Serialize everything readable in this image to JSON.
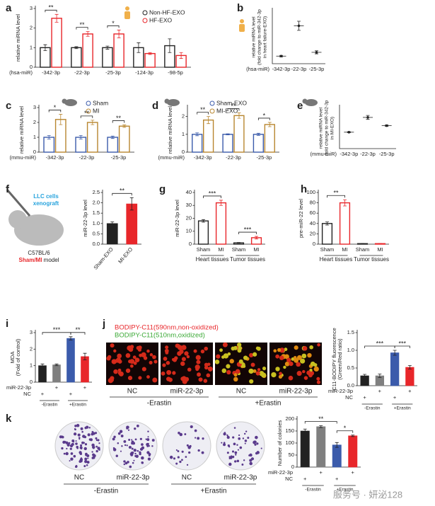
{
  "watermark": "服务号 · 妍泌128",
  "chart_data": [
    {
      "panel": "a",
      "type": "bar",
      "style": "open",
      "ylabel": "relative miRNA level",
      "prefix": "(hsa-miR)",
      "categories": [
        "-342-3p",
        "-22-3p",
        "-25-3p",
        "-124-3p",
        "-98-5p"
      ],
      "series": [
        {
          "name": "Non-HF-EXO",
          "color": "#222222",
          "values": [
            1,
            1,
            1,
            1,
            1.1
          ],
          "errors": [
            0.15,
            0.05,
            0.08,
            0.25,
            0.35
          ]
        },
        {
          "name": "HF-EXO",
          "color": "#e8262a",
          "values": [
            2.5,
            1.7,
            1.7,
            0.7,
            0.6
          ],
          "errors": [
            0.2,
            0.12,
            0.2,
            0.05,
            0.15
          ]
        }
      ],
      "significance": [
        "**",
        "**",
        "*"
      ],
      "ylim": [
        0,
        3
      ],
      "yticks": [
        0,
        1,
        2,
        3
      ]
    },
    {
      "panel": "b",
      "type": "dot",
      "ylabel": [
        "relative miRNA level",
        "(fold change to miR-342-3p",
        "in heart failure-EXO)"
      ],
      "prefix": "(hsa-miR)",
      "categories": [
        "-342-3p",
        "-22-3p",
        "-25-3p"
      ],
      "values": [
        1,
        5,
        1.5
      ],
      "errors": [
        0.1,
        0.6,
        0.2
      ],
      "color": "#222222",
      "ylim": [
        0,
        7
      ],
      "yticks": []
    },
    {
      "panel": "c",
      "type": "bar",
      "style": "open",
      "ylabel": "relative miRNA level",
      "prefix": "(mmu-miR)",
      "categories": [
        "-342-3p",
        "-22-3p",
        "-25-3p"
      ],
      "series": [
        {
          "name": "Sham",
          "color": "#3b5bab",
          "values": [
            1,
            1,
            1
          ],
          "errors": [
            0.12,
            0.12,
            0.08
          ]
        },
        {
          "name": "MI",
          "color": "#b8862f",
          "values": [
            2.2,
            2.0,
            1.75
          ],
          "errors": [
            0.35,
            0.15,
            0.08
          ]
        }
      ],
      "significance": [
        "*",
        "**",
        "**"
      ],
      "ylim": [
        0,
        3
      ],
      "yticks": [
        0,
        1,
        2,
        3
      ]
    },
    {
      "panel": "d",
      "type": "bar",
      "style": "open",
      "ylabel": "relative miRNA level",
      "prefix": "(mmu-miR)",
      "categories": [
        "-342-3p",
        "-22-3p",
        "-25-3p"
      ],
      "series": [
        {
          "name": "Sham-EXO",
          "color": "#3b5bab",
          "values": [
            1,
            1,
            1
          ],
          "errors": [
            0.08,
            0.03,
            0.06
          ]
        },
        {
          "name": "MI-EXO",
          "color": "#b8862f",
          "values": [
            1.8,
            2.05,
            1.55
          ],
          "errors": [
            0.2,
            0.15,
            0.12
          ]
        }
      ],
      "significance": [
        "**",
        "**",
        "*"
      ],
      "ylim": [
        0,
        2.5
      ],
      "yticks": [
        0,
        1,
        2
      ]
    },
    {
      "panel": "e",
      "type": "dot",
      "ylabel": [
        "relative miRNA level",
        "(fold change to miR-342-3p",
        "in MI-EXO)"
      ],
      "prefix": "(mmu-miR)",
      "categories": [
        "-342-3p",
        "-22-3p",
        "-25-3p"
      ],
      "values": [
        1,
        1.9,
        1.4
      ],
      "errors": [
        0.03,
        0.12,
        0.05
      ],
      "color": "#222222",
      "ylim": [
        0,
        2.5
      ],
      "yticks": []
    },
    {
      "panel": "f",
      "type": "bar",
      "style": "filled",
      "ylabel": "miR-22-3p level",
      "categories": [
        "Sham-EXO",
        "MI-EXO"
      ],
      "values": [
        1,
        1.95
      ],
      "errors": [
        0.08,
        0.3
      ],
      "colors": [
        "#222222",
        "#e8262a"
      ],
      "significance": [
        "**"
      ],
      "ylim": [
        0,
        2.5
      ],
      "yticks": [
        {
          "value": 0,
          "label": "0.0"
        },
        0.5,
        {
          "value": 1,
          "label": "1.0"
        },
        1.5,
        {
          "value": 2,
          "label": "2.0"
        },
        2.5
      ],
      "illustration": [
        "LLC cells",
        "xenograft",
        "C57BL/6"
      ],
      "model": [
        "Sham/MI",
        " model"
      ]
    },
    {
      "panel": "g",
      "type": "bar",
      "style": "open",
      "ylabel": "miR-22-3p level",
      "categories": [
        "Sham",
        "MI",
        "Sham",
        "MI"
      ],
      "groups": [
        "Heart tissues",
        "Tumor tissues"
      ],
      "values": [
        18,
        32,
        1,
        5
      ],
      "errors": [
        1,
        2,
        0.3,
        1
      ],
      "colors": [
        "#222222",
        "#e8262a",
        "#222222",
        "#e8262a"
      ],
      "significance": [
        "***",
        "***"
      ],
      "ylim": [
        0,
        40
      ],
      "yticks": [
        0,
        10,
        20,
        30,
        40
      ]
    },
    {
      "panel": "h",
      "type": "bar",
      "style": "open",
      "ylabel": "pre-miR-22 level",
      "categories": [
        "Sham",
        "MI",
        "Sham",
        "MI"
      ],
      "groups": [
        "Heart tissues",
        "Tumor tissues"
      ],
      "values": [
        40,
        80,
        1,
        1
      ],
      "errors": [
        3,
        6,
        0.3,
        0.3
      ],
      "colors": [
        "#222222",
        "#e8262a",
        "#222222",
        "#e8262a"
      ],
      "significance": [
        "**"
      ],
      "ylim": [
        0,
        100
      ],
      "yticks": [
        0,
        20,
        40,
        60,
        80,
        100
      ]
    },
    {
      "panel": "i",
      "type": "bar",
      "style": "filled",
      "ylabel": [
        "MDA",
        "(Fold of control)"
      ],
      "values": [
        1,
        1.05,
        2.65,
        1.55
      ],
      "errors": [
        0.1,
        0.05,
        0.1,
        0.2
      ],
      "colors": [
        "#222222",
        "#7f7f7f",
        "#3b5bab",
        "#e8262a"
      ],
      "rows": [
        {
          "label": "miR-22-3p",
          "marks": [
            null,
            "+",
            null,
            "+"
          ]
        },
        {
          "label": "NC",
          "marks": [
            "+",
            null,
            "+",
            null
          ]
        }
      ],
      "groups": [
        "-Erastin",
        "+Erastin"
      ],
      "significance": [
        "***",
        "**"
      ],
      "ylim": [
        0,
        3
      ],
      "yticks": [
        0,
        1,
        2,
        3
      ]
    },
    {
      "panel": "j",
      "type": "bar",
      "style": "filled",
      "ylabel": [
        "C11-BODIPY fluorescence",
        "(Green/Red ratio)"
      ],
      "values": [
        0.28,
        0.28,
        0.93,
        0.52
      ],
      "errors": [
        0.04,
        0.05,
        0.07,
        0.05
      ],
      "colors": [
        "#222222",
        "#7f7f7f",
        "#3b5bab",
        "#e8262a"
      ],
      "rows": [
        {
          "label": "miR-22-3p",
          "marks": [
            null,
            "+",
            null,
            "+"
          ]
        },
        {
          "label": "NC",
          "marks": [
            "+",
            null,
            "+",
            null
          ]
        }
      ],
      "groups": [
        "-Erastin",
        "+Erastin"
      ],
      "significance": [
        "***",
        "***"
      ],
      "ylim": [
        0,
        1.5
      ],
      "yticks": [
        {
          "value": 0,
          "label": "0.0"
        },
        0.5,
        {
          "value": 1,
          "label": "1.0"
        },
        1.5
      ],
      "stains": [
        {
          "text": "BODIPY-C11(590nm,non-oxidized)",
          "color": "#e8262a"
        },
        {
          "text": "BODIPY-C11(510nm,oxidized)",
          "color": "#3aa935"
        }
      ],
      "image_labels": [
        "NC",
        "miR-22-3p",
        "NC",
        "miR-22-3p"
      ],
      "image_groups": [
        "-Erastin",
        "+Erastin"
      ]
    },
    {
      "panel": "k",
      "type": "bar",
      "style": "filled",
      "ylabel": "Number of colonies",
      "values": [
        150,
        168,
        92,
        130
      ],
      "errors": [
        8,
        4,
        10,
        3
      ],
      "colors": [
        "#222222",
        "#7f7f7f",
        "#3b5bab",
        "#e8262a"
      ],
      "rows": [
        {
          "label": "miR-22-3p",
          "marks": [
            null,
            "+",
            null,
            "+"
          ]
        },
        {
          "label": "NC",
          "marks": [
            "+",
            null,
            "+",
            null
          ]
        }
      ],
      "groups": [
        "-Erastin",
        "+Erastin"
      ],
      "significance": [
        "**",
        "*"
      ],
      "ylim": [
        0,
        200
      ],
      "yticks": [
        0,
        50,
        100,
        150,
        200
      ],
      "image_labels": [
        "NC",
        "miR-22-3p",
        "NC",
        "miR-22-3p"
      ],
      "image_groups": [
        "-Erastin",
        "+Erastin"
      ]
    }
  ]
}
